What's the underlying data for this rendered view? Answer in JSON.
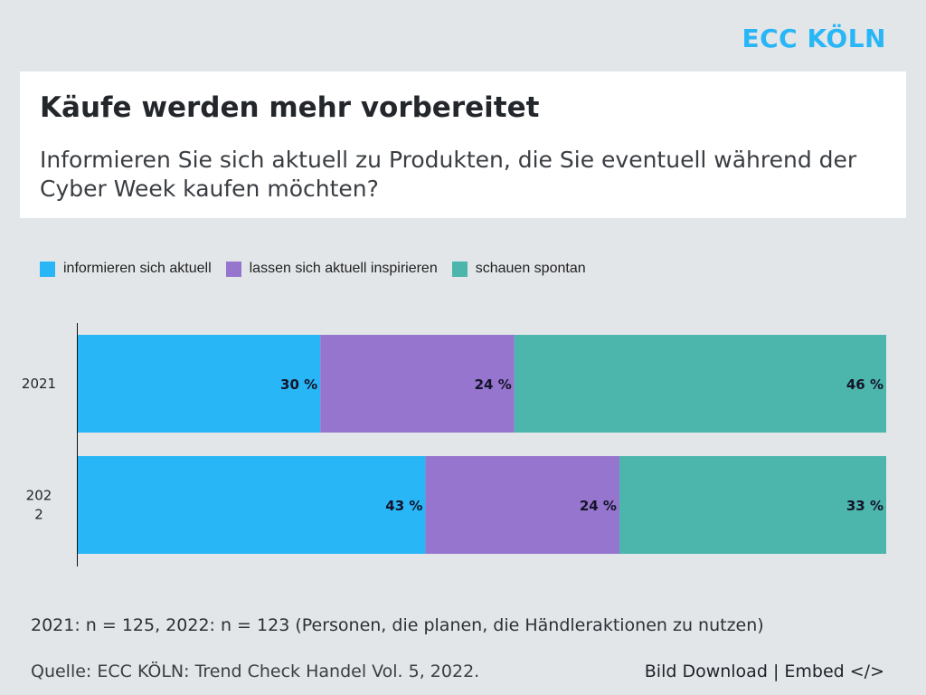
{
  "brand": {
    "logo_text": "ECC KÖLN",
    "color": "#29b6f6"
  },
  "header": {
    "title": "Käufe werden mehr vorbereitet",
    "subtitle": "Informieren Sie sich aktuell zu Produkten, die Sie eventuell während der Cyber Week kaufen möchten?"
  },
  "chart_data": {
    "type": "bar",
    "orientation": "horizontal",
    "stacked": true,
    "normalized_percent": true,
    "title": "Käufe werden mehr vorbereitet",
    "xlabel": "",
    "ylabel": "",
    "xlim": [
      0,
      100
    ],
    "grid": false,
    "legend_position": "top-left",
    "categories": [
      "2021",
      "2022"
    ],
    "category_tick_labels": [
      "2021",
      "202\n2"
    ],
    "series": [
      {
        "name": "informieren sich aktuell",
        "color": "#29b6f6",
        "values": [
          30,
          43
        ],
        "labels": [
          "30 %",
          "43 %"
        ]
      },
      {
        "name": "lassen sich aktuell inspirieren",
        "color": "#9575cd",
        "values": [
          24,
          24
        ],
        "labels": [
          "24 %",
          "24 %"
        ]
      },
      {
        "name": "schauen spontan",
        "color": "#4db6ac",
        "values": [
          46,
          33
        ],
        "labels": [
          "46 %",
          "33 %"
        ]
      }
    ]
  },
  "footer": {
    "note": "2021: n = 125, 2022: n = 123 (Personen, die planen, die Händleraktionen zu nutzen)",
    "source": "Quelle: ECC KÖLN: Trend Check Handel Vol. 5, 2022.",
    "download_label": "Bild Download",
    "separator": "|",
    "embed_label": "Embed </>"
  }
}
